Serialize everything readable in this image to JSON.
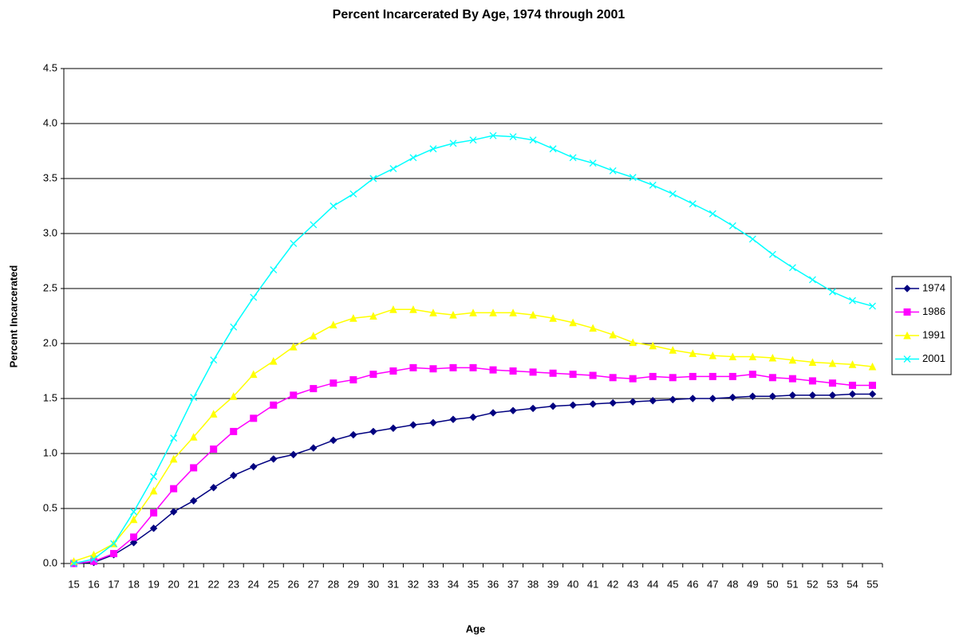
{
  "chart_data": {
    "type": "line",
    "title": "Percent Incarcerated By Age, 1974 through 2001",
    "x_label": "Age",
    "y_label": "Percent Incarcerated",
    "categories": [
      "15",
      "16",
      "17",
      "18",
      "19",
      "20",
      "21",
      "22",
      "23",
      "24",
      "25",
      "26",
      "27",
      "28",
      "29",
      "30",
      "31",
      "32",
      "33",
      "34",
      "35",
      "36",
      "37",
      "38",
      "39",
      "40",
      "41",
      "42",
      "43",
      "44",
      "45",
      "46",
      "47",
      "48",
      "49",
      "50",
      "51",
      "52",
      "53",
      "54",
      "55"
    ],
    "ylim": [
      0,
      4.5
    ],
    "yticks": [
      {
        "value": 0,
        "label": "0.0"
      },
      0.5,
      {
        "value": 1,
        "label": "1.0"
      },
      1.5,
      {
        "value": 2,
        "label": "2.0"
      },
      2.5,
      {
        "value": 3,
        "label": "3.0"
      },
      3.5,
      {
        "value": 4,
        "label": "4.0"
      },
      4.5
    ],
    "grid": true,
    "legend": "right",
    "series": [
      {
        "name": "1974",
        "color": "#000080",
        "marker": "diamond",
        "values": [
          0.0,
          0.01,
          0.08,
          0.19,
          0.32,
          0.47,
          0.57,
          0.69,
          0.8,
          0.88,
          0.95,
          0.99,
          1.05,
          1.12,
          1.17,
          1.2,
          1.23,
          1.26,
          1.28,
          1.31,
          1.33,
          1.37,
          1.39,
          1.41,
          1.43,
          1.44,
          1.45,
          1.46,
          1.47,
          1.48,
          1.49,
          1.5,
          1.5,
          1.51,
          1.52,
          1.52,
          1.53,
          1.53,
          1.53,
          1.54,
          1.54
        ]
      },
      {
        "name": "1986",
        "color": "#FF00FF",
        "marker": "square",
        "values": [
          0.0,
          0.02,
          0.09,
          0.24,
          0.46,
          0.68,
          0.87,
          1.04,
          1.2,
          1.32,
          1.44,
          1.53,
          1.59,
          1.64,
          1.67,
          1.72,
          1.75,
          1.78,
          1.77,
          1.78,
          1.78,
          1.76,
          1.75,
          1.74,
          1.73,
          1.72,
          1.71,
          1.69,
          1.68,
          1.7,
          1.69,
          1.7,
          1.7,
          1.7,
          1.72,
          1.69,
          1.68,
          1.66,
          1.64,
          1.62,
          1.62
        ]
      },
      {
        "name": "1991",
        "color": "#FFFF00",
        "marker": "triangle",
        "values": [
          0.02,
          0.08,
          0.18,
          0.4,
          0.66,
          0.95,
          1.15,
          1.36,
          1.52,
          1.72,
          1.84,
          1.97,
          2.07,
          2.17,
          2.23,
          2.25,
          2.31,
          2.31,
          2.28,
          2.26,
          2.28,
          2.28,
          2.28,
          2.26,
          2.23,
          2.19,
          2.14,
          2.08,
          2.01,
          1.98,
          1.94,
          1.91,
          1.89,
          1.88,
          1.88,
          1.87,
          1.85,
          1.83,
          1.82,
          1.81,
          1.79
        ]
      },
      {
        "name": "2001",
        "color": "#00FFFF",
        "marker": "x",
        "values": [
          0.0,
          0.04,
          0.18,
          0.47,
          0.79,
          1.14,
          1.51,
          1.85,
          2.15,
          2.42,
          2.67,
          2.91,
          3.08,
          3.25,
          3.36,
          3.5,
          3.59,
          3.69,
          3.77,
          3.82,
          3.85,
          3.89,
          3.88,
          3.85,
          3.77,
          3.69,
          3.64,
          3.57,
          3.51,
          3.44,
          3.36,
          3.27,
          3.18,
          3.07,
          2.95,
          2.81,
          2.69,
          2.58,
          2.47,
          2.39,
          2.34
        ]
      }
    ]
  }
}
